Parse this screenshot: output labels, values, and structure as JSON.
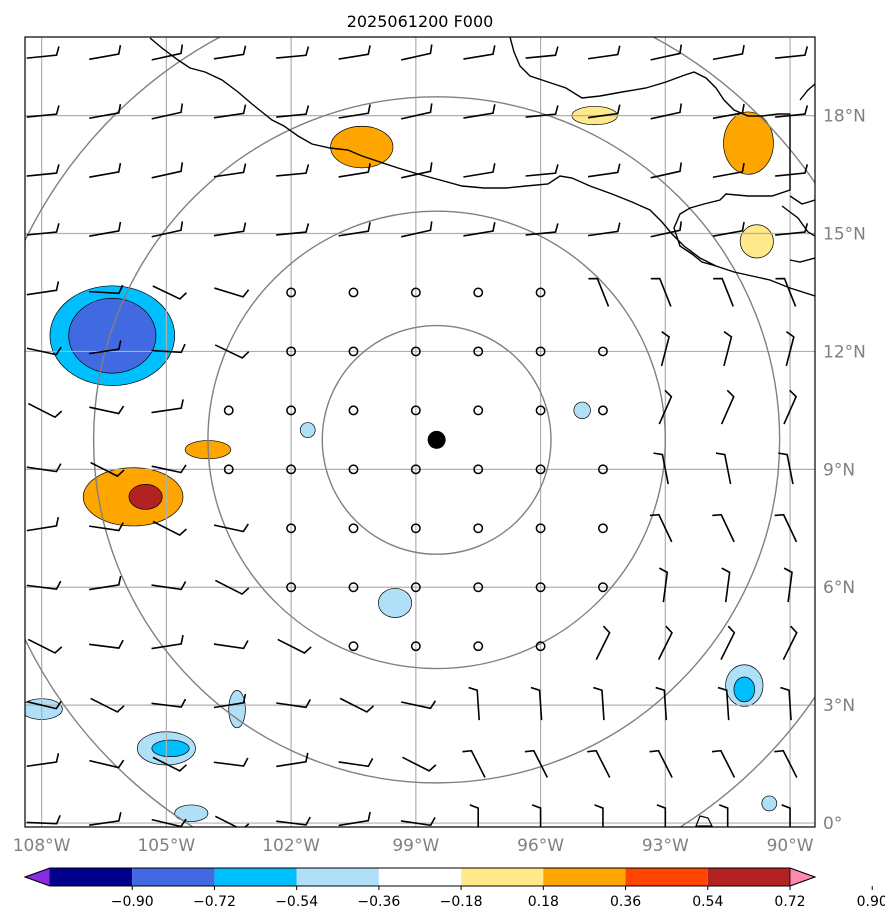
{
  "title": "2025061200 F000",
  "map": {
    "lon_range": [
      -108.4,
      -89.4
    ],
    "lat_range": [
      -0.1,
      20.0
    ],
    "lon_ticks": [
      {
        "value": -108,
        "label": "108°W"
      },
      {
        "value": -105,
        "label": "105°W"
      },
      {
        "value": -102,
        "label": "102°W"
      },
      {
        "value": -99,
        "label": "99°W"
      },
      {
        "value": -96,
        "label": "96°W"
      },
      {
        "value": -93,
        "label": "93°W"
      },
      {
        "value": -90,
        "label": "90°W"
      }
    ],
    "lat_ticks": [
      {
        "value": 0,
        "label": "0°"
      },
      {
        "value": 3,
        "label": "3°N"
      },
      {
        "value": 6,
        "label": "6°N"
      },
      {
        "value": 9,
        "label": "9°N"
      },
      {
        "value": 12,
        "label": "12°N"
      },
      {
        "value": 15,
        "label": "15°N"
      },
      {
        "value": 18,
        "label": "18°N"
      }
    ],
    "center": {
      "lon": -98.5,
      "lat": 9.75
    },
    "range_rings_deg": [
      2.75,
      5.5,
      8.25,
      11.0
    ],
    "colors": {
      "grid": "#b0b0b0",
      "rings": "#808080",
      "coast": "#000000",
      "tick_labels": "#808080"
    }
  },
  "colorbar": {
    "levels": [
      "−0.90",
      "−0.72",
      "−0.54",
      "−0.36",
      "−0.18",
      "0.18",
      "0.36",
      "0.54",
      "0.72",
      "0.90"
    ],
    "colors": [
      "#8a2be2",
      "#00008b",
      "#4169e1",
      "#00bfff",
      "#b0e0f8",
      "#ffffff",
      "#ffe98a",
      "#ffa500",
      "#ff4500",
      "#b22222",
      "#ff88b0"
    ]
  },
  "anomaly_blobs": [
    {
      "lon": -106.3,
      "lat": 12.4,
      "rx": 1.5,
      "ry": 1.2,
      "level": -0.36
    },
    {
      "lon": -106.3,
      "lat": 12.4,
      "rx": 1.05,
      "ry": 0.9,
      "level": -0.54
    },
    {
      "lon": -105.8,
      "lat": 8.3,
      "rx": 1.2,
      "ry": 0.7,
      "level": 0.36
    },
    {
      "lon": -105.5,
      "lat": 8.3,
      "rx": 0.4,
      "ry": 0.3,
      "level": 0.72
    },
    {
      "lon": -104.0,
      "lat": 9.5,
      "rx": 0.55,
      "ry": 0.22,
      "level": 0.36
    },
    {
      "lon": -100.3,
      "lat": 17.2,
      "rx": 0.75,
      "ry": 0.5,
      "level": 0.36
    },
    {
      "lon": -94.7,
      "lat": 18.0,
      "rx": 0.55,
      "ry": 0.22,
      "level": 0.18
    },
    {
      "lon": -91.0,
      "lat": 17.3,
      "rx": 0.6,
      "ry": 0.75,
      "level": 0.36
    },
    {
      "lon": -90.8,
      "lat": 14.8,
      "rx": 0.4,
      "ry": 0.4,
      "level": 0.18
    },
    {
      "lon": -105.0,
      "lat": 1.9,
      "rx": 0.7,
      "ry": 0.4,
      "level": -0.18
    },
    {
      "lon": -104.9,
      "lat": 1.9,
      "rx": 0.45,
      "ry": 0.2,
      "level": -0.36
    },
    {
      "lon": -103.3,
      "lat": 2.9,
      "rx": 0.2,
      "ry": 0.45,
      "level": -0.18
    },
    {
      "lon": -108.0,
      "lat": 2.9,
      "rx": 0.5,
      "ry": 0.25,
      "level": -0.18
    },
    {
      "lon": -99.5,
      "lat": 5.6,
      "rx": 0.4,
      "ry": 0.35,
      "level": -0.18
    },
    {
      "lon": -91.1,
      "lat": 3.5,
      "rx": 0.45,
      "ry": 0.5,
      "level": -0.18
    },
    {
      "lon": -91.1,
      "lat": 3.4,
      "rx": 0.25,
      "ry": 0.3,
      "level": -0.36
    },
    {
      "lon": -101.6,
      "lat": 10.0,
      "rx": 0.18,
      "ry": 0.18,
      "level": -0.18
    },
    {
      "lon": -95.0,
      "lat": 10.5,
      "rx": 0.2,
      "ry": 0.2,
      "level": -0.18
    },
    {
      "lon": -104.4,
      "lat": 0.25,
      "rx": 0.4,
      "ry": 0.2,
      "level": -0.18
    },
    {
      "lon": -90.5,
      "lat": 0.5,
      "rx": 0.18,
      "ry": 0.18,
      "level": -0.18
    }
  ]
}
